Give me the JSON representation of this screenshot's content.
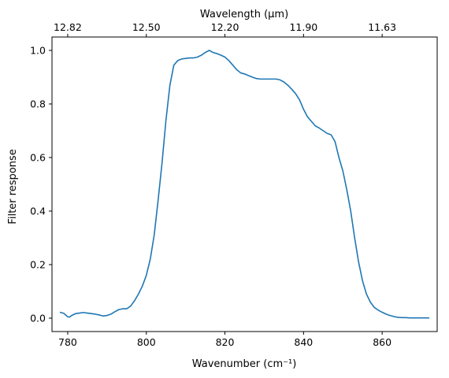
{
  "chart_data": {
    "type": "line",
    "xlabel": "Wavenumber (cm⁻¹)",
    "ylabel": "Filter response",
    "top_xlabel": "Wavelength (μm)",
    "xlim": [
      776,
      874
    ],
    "ylim": [
      -0.05,
      1.05
    ],
    "xticks": [
      780,
      800,
      820,
      840,
      860
    ],
    "xtick_labels": [
      "780",
      "800",
      "820",
      "840",
      "860"
    ],
    "yticks": [
      0.0,
      0.2,
      0.4,
      0.6,
      0.8,
      1.0
    ],
    "ytick_labels": [
      "0.0",
      "0.2",
      "0.4",
      "0.6",
      "0.8",
      "1.0"
    ],
    "top_ticks": [
      {
        "wavenumber": 780,
        "label": "12.82"
      },
      {
        "wavenumber": 800,
        "label": "12.50"
      },
      {
        "wavenumber": 820,
        "label": "12.20"
      },
      {
        "wavenumber": 840,
        "label": "11.90"
      },
      {
        "wavenumber": 860,
        "label": "11.63"
      }
    ],
    "grid": false,
    "line_color": "#1f77b4",
    "series": [
      {
        "x": [
          778.0,
          779.0,
          780.0,
          780.5,
          781.0,
          782.0,
          783.0,
          784.0,
          785.0,
          786.0,
          787.0,
          788.0,
          789.0,
          790.0,
          791.0,
          792.0,
          793.0,
          794.0,
          795.0,
          796.0,
          797.0,
          798.0,
          799.0,
          800.0,
          801.0,
          802.0,
          803.0,
          804.0,
          805.0,
          806.0,
          807.0,
          808.0,
          809.0,
          810.0,
          811.0,
          812.0,
          813.0,
          814.0,
          815.0,
          816.0,
          817.0,
          818.0,
          819.0,
          820.0,
          821.0,
          822.0,
          823.0,
          824.0,
          825.0,
          826.0,
          827.0,
          828.0,
          829.0,
          830.0,
          831.0,
          832.0,
          833.0,
          834.0,
          835.0,
          836.0,
          837.0,
          838.0,
          839.0,
          840.0,
          841.0,
          842.0,
          843.0,
          844.0,
          845.0,
          846.0,
          847.0,
          848.0,
          849.0,
          850.0,
          851.0,
          852.0,
          853.0,
          854.0,
          855.0,
          856.0,
          857.0,
          858.0,
          859.0,
          860.0,
          861.0,
          862.0,
          863.0,
          864.0,
          865.0,
          866.0,
          867.0,
          868.0,
          869.0,
          870.0,
          871.0,
          872.0
        ],
        "values": [
          0.022,
          0.018,
          0.005,
          0.004,
          0.01,
          0.017,
          0.019,
          0.021,
          0.019,
          0.017,
          0.015,
          0.012,
          0.008,
          0.01,
          0.015,
          0.024,
          0.032,
          0.035,
          0.035,
          0.045,
          0.065,
          0.09,
          0.12,
          0.16,
          0.22,
          0.31,
          0.44,
          0.58,
          0.74,
          0.87,
          0.945,
          0.962,
          0.968,
          0.97,
          0.972,
          0.972,
          0.975,
          0.982,
          0.992,
          1.0,
          0.992,
          0.988,
          0.982,
          0.975,
          0.962,
          0.945,
          0.928,
          0.916,
          0.912,
          0.906,
          0.9,
          0.895,
          0.893,
          0.893,
          0.893,
          0.893,
          0.893,
          0.89,
          0.882,
          0.87,
          0.855,
          0.838,
          0.815,
          0.78,
          0.752,
          0.735,
          0.718,
          0.71,
          0.7,
          0.69,
          0.685,
          0.66,
          0.6,
          0.55,
          0.48,
          0.4,
          0.3,
          0.21,
          0.14,
          0.09,
          0.06,
          0.04,
          0.03,
          0.022,
          0.015,
          0.01,
          0.006,
          0.003,
          0.002,
          0.002,
          0.001,
          0.001,
          0.001,
          0.001,
          0.001,
          0.001
        ]
      }
    ]
  }
}
